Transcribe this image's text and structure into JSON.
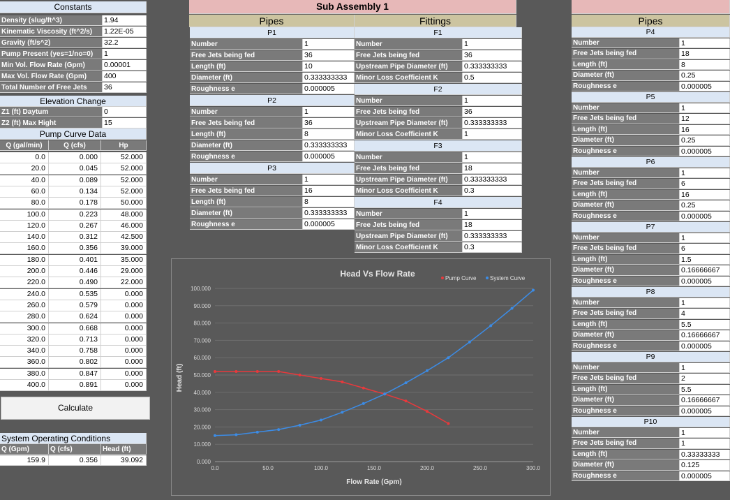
{
  "constants": {
    "title": "Constants",
    "rows": [
      {
        "label": "Density (slug/ft^3)",
        "value": "1.94"
      },
      {
        "label": "Kinematic Viscosity (ft^2/s)",
        "value": "1.22E-05"
      },
      {
        "label": "Gravity (ft/s^2)",
        "value": "32.2"
      },
      {
        "label": "Pump Present (yes=1/no=0)",
        "value": "1"
      },
      {
        "label": "Min Vol. Flow Rate (Gpm)",
        "value": "0.00001"
      },
      {
        "label": "Max Vol. Flow Rate (Gpm)",
        "value": "400"
      },
      {
        "label": "Total Number of Free Jets",
        "value": "36"
      }
    ]
  },
  "elevation": {
    "title": "Elevation Change",
    "rows": [
      {
        "label": "Z1 (ft) Daytum",
        "value": "0"
      },
      {
        "label": "Z2 (ft) Max Hight",
        "value": "15"
      }
    ]
  },
  "pump": {
    "title": "Pump Curve Data",
    "headers": [
      "Q (gal/min)",
      "Q (cfs)",
      "Hp"
    ],
    "rows": [
      [
        "0.0",
        "0.000",
        "52.000"
      ],
      [
        "20.0",
        "0.045",
        "52.000"
      ],
      [
        "40.0",
        "0.089",
        "52.000"
      ],
      [
        "60.0",
        "0.134",
        "52.000"
      ],
      [
        "80.0",
        "0.178",
        "50.000"
      ],
      [
        "100.0",
        "0.223",
        "48.000"
      ],
      [
        "120.0",
        "0.267",
        "46.000"
      ],
      [
        "140.0",
        "0.312",
        "42.500"
      ],
      [
        "160.0",
        "0.356",
        "39.000"
      ],
      [
        "180.0",
        "0.401",
        "35.000"
      ],
      [
        "200.0",
        "0.446",
        "29.000"
      ],
      [
        "220.0",
        "0.490",
        "22.000"
      ],
      [
        "240.0",
        "0.535",
        "0.000"
      ],
      [
        "260.0",
        "0.579",
        "0.000"
      ],
      [
        "280.0",
        "0.624",
        "0.000"
      ],
      [
        "300.0",
        "0.668",
        "0.000"
      ],
      [
        "320.0",
        "0.713",
        "0.000"
      ],
      [
        "340.0",
        "0.758",
        "0.000"
      ],
      [
        "360.0",
        "0.802",
        "0.000"
      ],
      [
        "380.0",
        "0.847",
        "0.000"
      ],
      [
        "400.0",
        "0.891",
        "0.000"
      ]
    ]
  },
  "calculate_label": "Calculate",
  "operating": {
    "title": "System Operating Conditions",
    "headers": [
      "Q (Gpm)",
      "Q (cfs)",
      "Head (ft)"
    ],
    "values": [
      "159.9",
      "0.356",
      "39.092"
    ]
  },
  "sub": {
    "title": "Sub Assembly 1",
    "pipes_title": "Pipes",
    "fittings_title": "Fittings",
    "pipes": [
      {
        "name": "P1",
        "rows": [
          [
            "Number",
            "1"
          ],
          [
            "Free Jets being fed",
            "36"
          ],
          [
            "Length (ft)",
            "10"
          ],
          [
            "Diameter (ft)",
            "0.333333333"
          ],
          [
            "Roughness e",
            "0.000005"
          ]
        ]
      },
      {
        "name": "P2",
        "rows": [
          [
            "Number",
            "1"
          ],
          [
            "Free Jets being fed",
            "36"
          ],
          [
            "Length (ft)",
            "8"
          ],
          [
            "Diameter (ft)",
            "0.333333333"
          ],
          [
            "Roughness e",
            "0.000005"
          ]
        ]
      },
      {
        "name": "P3",
        "rows": [
          [
            "Number",
            "1"
          ],
          [
            "Free Jets being fed",
            "16"
          ],
          [
            "Length (ft)",
            "8"
          ],
          [
            "Diameter (ft)",
            "0.333333333"
          ],
          [
            "Roughness e",
            "0.000005"
          ]
        ]
      }
    ],
    "fittings": [
      {
        "name": "F1",
        "rows": [
          [
            "Number",
            "1"
          ],
          [
            "Free Jets being fed",
            "36"
          ],
          [
            "Upstream Pipe Diameter (ft)",
            "0.333333333"
          ],
          [
            "Minor Loss Coefficient K",
            "0.5"
          ]
        ]
      },
      {
        "name": "F2",
        "rows": [
          [
            "Number",
            "1"
          ],
          [
            "Free Jets being fed",
            "36"
          ],
          [
            "Upstream Pipe Diameter (ft)",
            "0.333333333"
          ],
          [
            "Minor Loss Coefficient K",
            "1"
          ]
        ]
      },
      {
        "name": "F3",
        "rows": [
          [
            "Number",
            "1"
          ],
          [
            "Free Jets being fed",
            "18"
          ],
          [
            "Upstream Pipe Diameter (ft)",
            "0.333333333"
          ],
          [
            "Minor Loss Coefficient K",
            "0.3"
          ]
        ]
      },
      {
        "name": "F4",
        "rows": [
          [
            "Number",
            "1"
          ],
          [
            "Free Jets being fed",
            "18"
          ],
          [
            "Upstream Pipe Diameter (ft)",
            "0.333333333"
          ],
          [
            "Minor Loss Coefficient K",
            "0.3"
          ]
        ]
      }
    ]
  },
  "right": {
    "pipes_title": "Pipes",
    "pipes": [
      {
        "name": "P4",
        "rows": [
          [
            "Number",
            "1"
          ],
          [
            "Free Jets being fed",
            "18"
          ],
          [
            "Length (ft)",
            "8"
          ],
          [
            "Diameter (ft)",
            "0.25"
          ],
          [
            "Roughness e",
            "0.000005"
          ]
        ]
      },
      {
        "name": "P5",
        "rows": [
          [
            "Number",
            "1"
          ],
          [
            "Free Jets being fed",
            "12"
          ],
          [
            "Length (ft)",
            "16"
          ],
          [
            "Diameter (ft)",
            "0.25"
          ],
          [
            "Roughness e",
            "0.000005"
          ]
        ]
      },
      {
        "name": "P6",
        "rows": [
          [
            "Number",
            "1"
          ],
          [
            "Free Jets being fed",
            "6"
          ],
          [
            "Length (ft)",
            "16"
          ],
          [
            "Diameter (ft)",
            "0.25"
          ],
          [
            "Roughness e",
            "0.000005"
          ]
        ]
      },
      {
        "name": "P7",
        "rows": [
          [
            "Number",
            "1"
          ],
          [
            "Free Jets being fed",
            "6"
          ],
          [
            "Length (ft)",
            "1.5"
          ],
          [
            "Diameter (ft)",
            "0.16666667"
          ],
          [
            "Roughness e",
            "0.000005"
          ]
        ]
      },
      {
        "name": "P8",
        "rows": [
          [
            "Number",
            "1"
          ],
          [
            "Free Jets being fed",
            "4"
          ],
          [
            "Length (ft)",
            "5.5"
          ],
          [
            "Diameter (ft)",
            "0.16666667"
          ],
          [
            "Roughness e",
            "0.000005"
          ]
        ]
      },
      {
        "name": "P9",
        "rows": [
          [
            "Number",
            "1"
          ],
          [
            "Free Jets being fed",
            "2"
          ],
          [
            "Length (ft)",
            "5.5"
          ],
          [
            "Diameter (ft)",
            "0.16666667"
          ],
          [
            "Roughness e",
            "0.000005"
          ]
        ]
      },
      {
        "name": "P10",
        "rows": [
          [
            "Number",
            "1"
          ],
          [
            "Free Jets being fed",
            "1"
          ],
          [
            "Length (ft)",
            "0.33333333"
          ],
          [
            "Diameter (ft)",
            "0.125"
          ],
          [
            "Roughness e",
            "0.000005"
          ]
        ]
      }
    ]
  },
  "chart_data": {
    "type": "scatter",
    "title": "Head Vs Flow Rate",
    "xlabel": "Flow Rate (Gpm)",
    "ylabel": "Head (ft)",
    "xlim": [
      0,
      300
    ],
    "ylim": [
      0,
      100
    ],
    "xticks": [
      "0.0",
      "50.0",
      "100.0",
      "150.0",
      "200.0",
      "250.0",
      "300.0"
    ],
    "yticks": [
      "0.000",
      "10.000",
      "20.000",
      "30.000",
      "40.000",
      "50.000",
      "60.000",
      "70.000",
      "80.000",
      "90.000",
      "100.000"
    ],
    "legend_position": "top-right",
    "series": [
      {
        "name": "Pump Curve",
        "color": "#e8393c",
        "x": [
          0,
          20,
          40,
          60,
          80,
          100,
          120,
          140,
          160,
          180,
          200,
          220
        ],
        "y": [
          52,
          52,
          52,
          52,
          50,
          48,
          46,
          42.5,
          39,
          35,
          29,
          22
        ]
      },
      {
        "name": "System Curve",
        "color": "#3c8ce6",
        "x": [
          0,
          20,
          40,
          60,
          80,
          100,
          120,
          140,
          160,
          180,
          200,
          220,
          240,
          260,
          280,
          300
        ],
        "y": [
          15,
          15.5,
          17,
          18.5,
          21,
          24,
          28.5,
          33.5,
          39,
          45.5,
          52.5,
          60,
          69,
          78.5,
          88.5,
          99
        ]
      }
    ]
  }
}
